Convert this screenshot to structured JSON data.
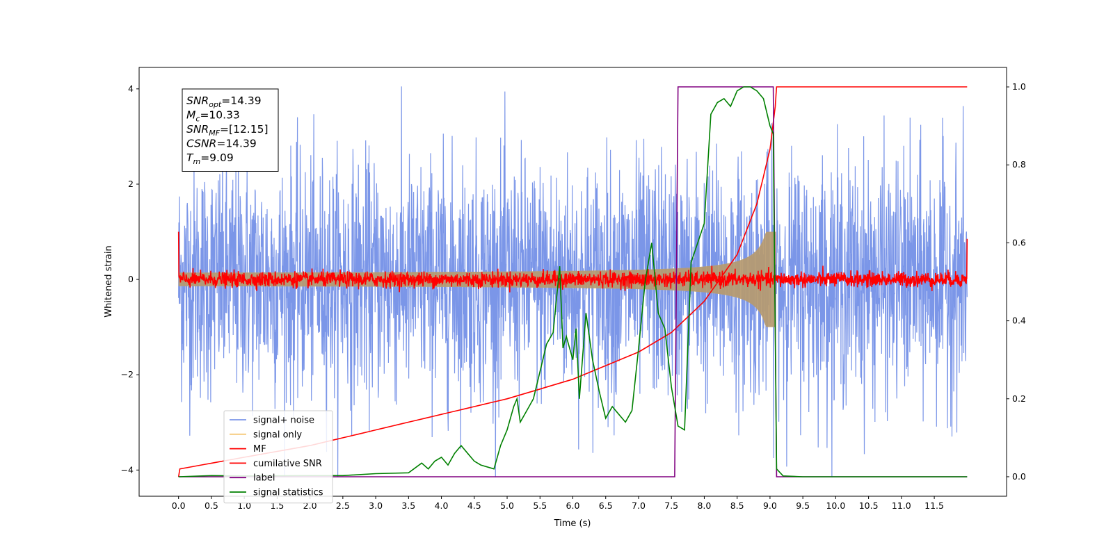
{
  "chart_data": {
    "type": "line",
    "xlabel": "Time (s)",
    "ylabel_left": "Whitened strain",
    "ylabel_right": "",
    "xlim": [
      -0.6,
      12.6
    ],
    "ylim_left": [
      -4.55,
      4.45
    ],
    "ylim_right": [
      -0.05,
      1.05
    ],
    "x_ticks": [
      "0.0",
      "0.5",
      "1.0",
      "1.5",
      "2.0",
      "2.5",
      "3.0",
      "3.5",
      "4.0",
      "4.5",
      "5.0",
      "5.5",
      "6.0",
      "6.5",
      "7.0",
      "7.5",
      "8.0",
      "8.5",
      "9.0",
      "9.5",
      "10.0",
      "10.5",
      "11.0",
      "11.5"
    ],
    "y_ticks_left": [
      "−4",
      "−2",
      "0",
      "2",
      "4"
    ],
    "y_ticks_right": [
      "0.0",
      "0.2",
      "0.4",
      "0.6",
      "0.8",
      "1.0"
    ],
    "grid": false,
    "legend_position": "lower-left",
    "annotation": {
      "lines": [
        {
          "main": "SNR",
          "sub": "opt",
          "value": "=14.39"
        },
        {
          "main": "M",
          "sub": "c",
          "value": "=10.33"
        },
        {
          "main": "SNR",
          "sub": "MF",
          "value": "=[12.15]"
        },
        {
          "main": "CSNR",
          "sub": "",
          "value": "=14.39"
        },
        {
          "main": "T",
          "sub": "m",
          "value": "=9.09"
        }
      ]
    },
    "series": [
      {
        "name": "signal+ noise",
        "color": "#7b96e8",
        "axis": "left",
        "style": "noise",
        "amplitude": 1.25,
        "range": [
          0,
          12
        ]
      },
      {
        "name": "signal only",
        "color": "#f5c97a",
        "axis": "left",
        "style": "chirp",
        "merger_time": 9.09,
        "peak_amplitude": 1.0
      },
      {
        "name": "MF",
        "color": "#ff0000",
        "axis": "left",
        "style": "noise",
        "amplitude": 0.08,
        "range": [
          0,
          12
        ]
      },
      {
        "name": "cumilative SNR",
        "color": "#ff0000",
        "axis": "right",
        "x": [
          0.0,
          0.02,
          1.0,
          2.0,
          3.0,
          4.0,
          5.0,
          6.0,
          7.0,
          7.5,
          8.0,
          8.5,
          8.8,
          9.0,
          9.08,
          9.1,
          12.0
        ],
        "y": [
          0.0,
          0.02,
          0.05,
          0.08,
          0.12,
          0.16,
          0.2,
          0.25,
          0.32,
          0.37,
          0.45,
          0.57,
          0.7,
          0.84,
          0.95,
          1.0,
          1.0
        ]
      },
      {
        "name": "label",
        "color": "#800080",
        "axis": "right",
        "x": [
          0.0,
          7.55,
          7.6,
          9.05,
          9.1,
          12.0
        ],
        "y": [
          0.0,
          0.0,
          1.0,
          1.0,
          0.0,
          0.0
        ]
      },
      {
        "name": "signal statistics",
        "color": "#008000",
        "axis": "right",
        "x": [
          0.0,
          0.5,
          1.0,
          2.0,
          2.5,
          3.0,
          3.5,
          3.7,
          3.8,
          3.9,
          4.0,
          4.1,
          4.2,
          4.3,
          4.4,
          4.5,
          4.6,
          4.8,
          4.9,
          5.0,
          5.1,
          5.15,
          5.2,
          5.3,
          5.4,
          5.5,
          5.6,
          5.7,
          5.8,
          5.85,
          5.9,
          6.0,
          6.05,
          6.1,
          6.2,
          6.3,
          6.4,
          6.5,
          6.6,
          6.7,
          6.8,
          6.9,
          7.0,
          7.1,
          7.2,
          7.3,
          7.4,
          7.5,
          7.6,
          7.7,
          7.8,
          7.9,
          8.0,
          8.1,
          8.2,
          8.3,
          8.4,
          8.5,
          8.6,
          8.7,
          8.8,
          8.9,
          9.0,
          9.05,
          9.1,
          9.2,
          9.5,
          10.0,
          11.0,
          12.0
        ],
        "y": [
          0.0,
          0.003,
          0.002,
          0.003,
          0.003,
          0.008,
          0.01,
          0.035,
          0.02,
          0.04,
          0.05,
          0.03,
          0.06,
          0.08,
          0.06,
          0.04,
          0.03,
          0.02,
          0.08,
          0.12,
          0.18,
          0.2,
          0.14,
          0.17,
          0.2,
          0.27,
          0.34,
          0.37,
          0.54,
          0.33,
          0.36,
          0.3,
          0.38,
          0.2,
          0.42,
          0.3,
          0.22,
          0.15,
          0.18,
          0.16,
          0.14,
          0.17,
          0.33,
          0.5,
          0.6,
          0.42,
          0.38,
          0.23,
          0.13,
          0.12,
          0.55,
          0.6,
          0.65,
          0.93,
          0.96,
          0.97,
          0.95,
          0.99,
          1.0,
          1.0,
          0.99,
          0.97,
          0.9,
          0.88,
          0.02,
          0.002,
          0.0,
          0.0,
          0.0,
          0.0
        ]
      }
    ]
  }
}
